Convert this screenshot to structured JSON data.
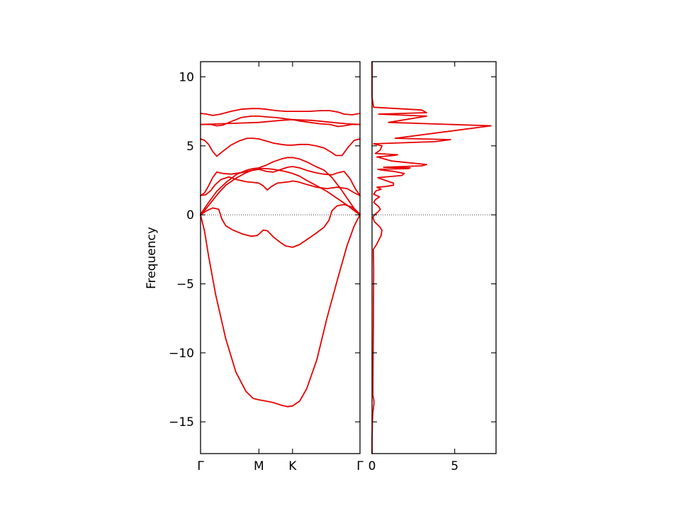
{
  "chart_data": [
    {
      "type": "line",
      "title": "",
      "xlabel": "",
      "ylabel": "Frequency",
      "ylim": [
        -17.3,
        11.1
      ],
      "x_ticks": [
        {
          "label": "Γ",
          "position": 0.0
        },
        {
          "label": "M",
          "position": 0.577
        },
        {
          "label": "K",
          "position": 0.91
        },
        {
          "label": "Γ",
          "position": 1.577
        }
      ],
      "y_ticks": [
        -15,
        -10,
        -5,
        0,
        5,
        10
      ],
      "y_tick_labels": [
        "−15",
        "−10",
        "−5",
        "0",
        "5",
        "10"
      ],
      "zero_line": true,
      "grid": false,
      "color": "#e60000",
      "series": [
        {
          "x": [
            0,
            0.04,
            0.08,
            0.15,
            0.25,
            0.35,
            0.45,
            0.52,
            0.577,
            0.65,
            0.72,
            0.8,
            0.86,
            0.91,
            0.98,
            1.05,
            1.15,
            1.25,
            1.35,
            1.45,
            1.52,
            1.577
          ],
          "y": [
            0,
            -1.2,
            -3,
            -5.8,
            -9,
            -11.4,
            -12.8,
            -13.3,
            -13.4,
            -13.5,
            -13.6,
            -13.8,
            -13.9,
            -13.85,
            -13.5,
            -12.6,
            -10.5,
            -7.5,
            -4.8,
            -2.2,
            -0.8,
            0
          ]
        },
        {
          "x": [
            0,
            0.06,
            0.12,
            0.18,
            0.21,
            0.25,
            0.32,
            0.42,
            0.5,
            0.56,
            0.577,
            0.62,
            0.66,
            0.72,
            0.78,
            0.84,
            0.91,
            0.98,
            1.06,
            1.14,
            1.22,
            1.27,
            1.3,
            1.35,
            1.42,
            1.5,
            1.577
          ],
          "y": [
            0,
            0.3,
            0.5,
            0.4,
            -0.3,
            -0.8,
            -1.1,
            -1.4,
            -1.55,
            -1.5,
            -1.4,
            -1.1,
            -1.15,
            -1.6,
            -1.95,
            -2.25,
            -2.35,
            -2.15,
            -1.75,
            -1.35,
            -0.9,
            -0.4,
            0.3,
            0.65,
            0.75,
            0.55,
            0
          ]
        },
        {
          "x": [
            0,
            0.06,
            0.12,
            0.18,
            0.25,
            0.35,
            0.45,
            0.52,
            0.577,
            0.65,
            0.72,
            0.8,
            0.86,
            0.91,
            0.98,
            1.05,
            1.15,
            1.25,
            1.35,
            1.45,
            1.52,
            1.577
          ],
          "y": [
            0,
            0.5,
            1.05,
            1.6,
            2.15,
            2.65,
            3.05,
            3.25,
            3.35,
            3.35,
            3.3,
            3.2,
            3.1,
            3,
            2.8,
            2.5,
            2.1,
            1.7,
            1.2,
            0.7,
            0.3,
            0
          ]
        },
        {
          "x": [
            0,
            0.05,
            0.1,
            0.14,
            0.2,
            0.28,
            0.36,
            0.45,
            0.52,
            0.577,
            0.62,
            0.66,
            0.7,
            0.76,
            0.82,
            0.88,
            0.91,
            0.96,
            1.05,
            1.15,
            1.25,
            1.35,
            1.45,
            1.52,
            1.577
          ],
          "y": [
            1.4,
            1.45,
            1.75,
            2.15,
            2.55,
            2.75,
            2.55,
            2.4,
            2.35,
            2.3,
            2.1,
            1.8,
            2.05,
            2.3,
            2.35,
            2.4,
            2.45,
            2.4,
            2.2,
            2,
            1.9,
            2,
            1.9,
            1.6,
            1.4
          ]
        },
        {
          "x": [
            0,
            0.04,
            0.08,
            0.12,
            0.16,
            0.22,
            0.3,
            0.4,
            0.5,
            0.577,
            0.65,
            0.72,
            0.8,
            0.86,
            0.91,
            0.98,
            1.06,
            1.14,
            1.22,
            1.3,
            1.36,
            1.42,
            1.48,
            1.53,
            1.577
          ],
          "y": [
            1.4,
            1.6,
            2.1,
            2.7,
            3.1,
            3,
            2.95,
            3.05,
            3.2,
            3.3,
            3.15,
            3.1,
            3.3,
            3.45,
            3.5,
            3.4,
            3.2,
            3.05,
            2.95,
            2.9,
            3.05,
            3.15,
            2.6,
            1.9,
            1.4
          ]
        },
        {
          "x": [
            0,
            0.08,
            0.16,
            0.26,
            0.36,
            0.46,
            0.52,
            0.577,
            0.65,
            0.72,
            0.8,
            0.86,
            0.91,
            0.98,
            1.06,
            1.14,
            1.22,
            1.3,
            1.38,
            1.45,
            1.52,
            1.577
          ],
          "y": [
            0.05,
            0.9,
            1.7,
            2.4,
            2.95,
            3.25,
            3.35,
            3.4,
            3.6,
            3.85,
            4.05,
            4.15,
            4.15,
            4.05,
            3.8,
            3.5,
            3.25,
            2.7,
            1.95,
            1.2,
            0.45,
            0.05
          ]
        },
        {
          "x": [
            0,
            0.04,
            0.08,
            0.12,
            0.16,
            0.22,
            0.3,
            0.38,
            0.46,
            0.52,
            0.577,
            0.65,
            0.72,
            0.8,
            0.86,
            0.91,
            0.98,
            1.06,
            1.14,
            1.22,
            1.28,
            1.34,
            1.4,
            1.46,
            1.52,
            1.577
          ],
          "y": [
            5.5,
            5.4,
            5.1,
            4.6,
            4.25,
            4.6,
            5.05,
            5.35,
            5.55,
            5.55,
            5.5,
            5.35,
            5.2,
            5.1,
            5.05,
            5.05,
            5.1,
            5.1,
            5,
            4.85,
            4.6,
            4.3,
            4.3,
            4.9,
            5.4,
            5.5
          ]
        },
        {
          "x": [
            0,
            0.2,
            0.4,
            0.577,
            0.8,
            0.91,
            1.1,
            1.3,
            1.45,
            1.577
          ],
          "y": [
            6.55,
            6.6,
            6.65,
            6.7,
            6.85,
            6.9,
            6.85,
            6.7,
            6.6,
            6.55
          ]
        },
        {
          "x": [
            0,
            0.1,
            0.16,
            0.22,
            0.3,
            0.4,
            0.5,
            0.577,
            0.65,
            0.75,
            0.85,
            0.91,
            0.98,
            1.08,
            1.18,
            1.28,
            1.36,
            1.42,
            1.5,
            1.577
          ],
          "y": [
            6.55,
            6.55,
            6.45,
            6.5,
            6.75,
            7.05,
            7.15,
            7.15,
            7.1,
            7.05,
            6.95,
            6.9,
            6.8,
            6.7,
            6.6,
            6.55,
            6.4,
            6.45,
            6.55,
            6.55
          ]
        },
        {
          "x": [
            0,
            0.06,
            0.12,
            0.2,
            0.3,
            0.4,
            0.5,
            0.577,
            0.65,
            0.75,
            0.85,
            0.91,
            0.98,
            1.08,
            1.18,
            1.28,
            1.36,
            1.42,
            1.5,
            1.577
          ],
          "y": [
            7.35,
            7.3,
            7.2,
            7.3,
            7.5,
            7.65,
            7.7,
            7.7,
            7.65,
            7.55,
            7.5,
            7.5,
            7.5,
            7.5,
            7.55,
            7.55,
            7.45,
            7.3,
            7.25,
            7.35
          ]
        }
      ]
    },
    {
      "type": "line",
      "title": "",
      "xlabel": "",
      "ylabel": "",
      "xlim": [
        0,
        7.5
      ],
      "ylim": [
        -17.3,
        11.1
      ],
      "x_ticks": [
        0,
        5
      ],
      "x_tick_labels": [
        "0",
        "5"
      ],
      "zero_line": true,
      "grid": false,
      "color": "#e60000",
      "series": [
        {
          "x": [
            0,
            0,
            0.02,
            0.05,
            0.08,
            0.1,
            0.12,
            0.1,
            0.07,
            0.05,
            0.06,
            0.08,
            0.1,
            0.08,
            0.25,
            0.55,
            0.6,
            0.45,
            0.15,
            0.05,
            0.15,
            0.35,
            0.5,
            0.4,
            0.1,
            0.2,
            0.45,
            0.1,
            0.25,
            0.55,
            0.3,
            0.8,
            1.3,
            1.3,
            0.8,
            0.35,
            1.8,
            1.95,
            1.3,
            0.55,
            0.35,
            2.2,
            2.3,
            0.7,
            3.0,
            3.3,
            1.2,
            0.3,
            1.3,
            1.55,
            0.2,
            0.5,
            0.6,
            0.1,
            3.8,
            4.75,
            1.4,
            7.2,
            1.0,
            3.3,
            0.4,
            3.3,
            3.0,
            0.1,
            0,
            0
          ],
          "y": [
            -17.3,
            -16.5,
            -15,
            -14.3,
            -14.05,
            -13.85,
            -13.6,
            -13.35,
            -13.2,
            -13,
            -11,
            -8,
            -4,
            -2.5,
            -2.2,
            -1.5,
            -1.1,
            -0.85,
            -0.5,
            -0.2,
            0,
            0.2,
            0.4,
            0.6,
            0.9,
            1.1,
            1.3,
            1.5,
            1.75,
            1.85,
            2,
            2.05,
            2.15,
            2.3,
            2.5,
            2.7,
            2.85,
            3.0,
            3.15,
            3.25,
            3.3,
            3.35,
            3.4,
            3.45,
            3.55,
            3.65,
            3.9,
            4.2,
            4.3,
            4.35,
            4.45,
            4.7,
            5,
            5.15,
            5.3,
            5.45,
            5.55,
            6.45,
            6.7,
            7.15,
            7.3,
            7.4,
            7.6,
            7.8,
            8.5,
            11.1
          ]
        }
      ]
    }
  ]
}
